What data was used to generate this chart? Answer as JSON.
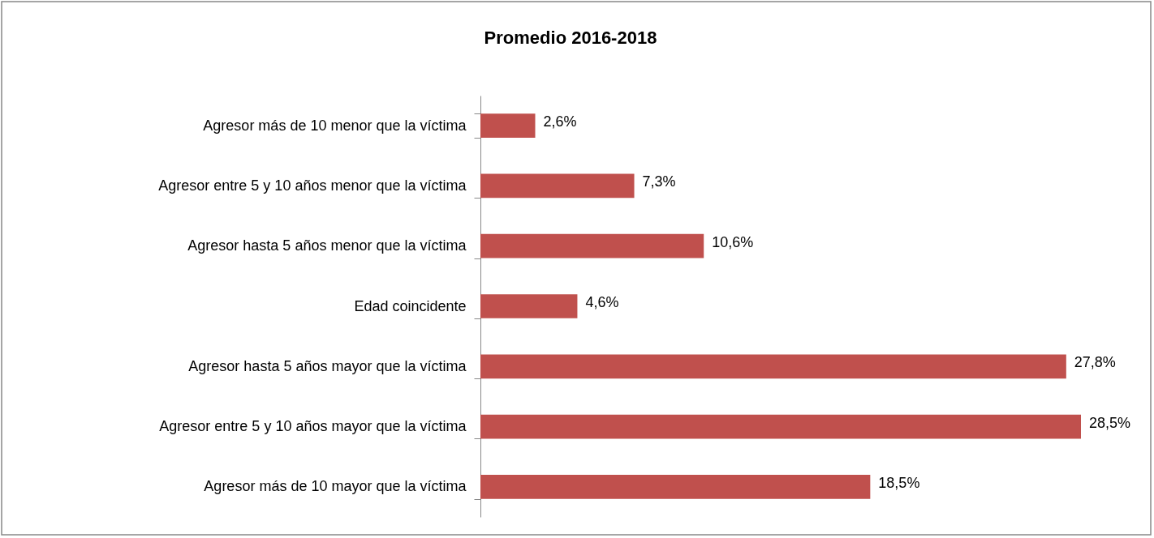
{
  "chart_data": {
    "type": "bar",
    "orientation": "horizontal",
    "title": "Promedio 2016-2018",
    "categories": [
      "Agresor más de 10 menor que la víctima",
      "Agresor entre 5 y 10 años menor que la víctima",
      "Agresor hasta 5 años menor que la víctima",
      "Edad coincidente",
      "Agresor hasta 5 años mayor que la víctima",
      "Agresor entre 5 y 10 años mayor que la víctima",
      "Agresor más de 10 mayor que la víctima"
    ],
    "values": [
      2.6,
      7.3,
      10.6,
      4.6,
      27.8,
      28.5,
      18.5
    ],
    "value_labels": [
      "2,6%",
      "7,3%",
      "10,6%",
      "4,6%",
      "27,8%",
      "28,5%",
      "18,5%"
    ],
    "color": "#c0504d",
    "grid": false
  }
}
